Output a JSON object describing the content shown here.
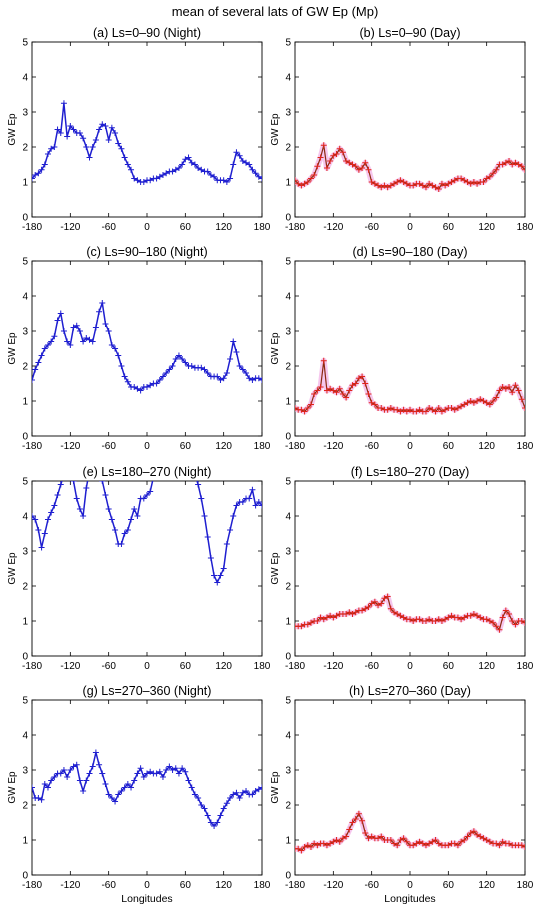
{
  "figure": {
    "title": "mean of several lats of GW Ep (Mp)",
    "ylabel": "GW Ep",
    "xlabel": "Longitudes",
    "night_color": "#1f1fd0",
    "day_color": "#8b2a10",
    "day_shade": "#f4b8e8"
  },
  "chart_data": [
    {
      "type": "line",
      "title": "(a) Ls=0–90 (Night)",
      "ylabel": "GW Ep",
      "xlabel": "",
      "xlim": [
        -180,
        180
      ],
      "ylim": [
        0,
        5
      ],
      "xticks": [
        -180,
        -120,
        -60,
        0,
        60,
        120,
        180
      ],
      "yticks": [
        0,
        1,
        2,
        3,
        4,
        5
      ],
      "x": [
        -180,
        -175,
        -170,
        -165,
        -160,
        -155,
        -150,
        -145,
        -140,
        -135,
        -130,
        -125,
        -120,
        -115,
        -110,
        -105,
        -100,
        -95,
        -90,
        -85,
        -80,
        -75,
        -70,
        -65,
        -60,
        -55,
        -50,
        -45,
        -40,
        -35,
        -30,
        -25,
        -20,
        -15,
        -10,
        -5,
        0,
        5,
        10,
        15,
        20,
        25,
        30,
        35,
        40,
        45,
        50,
        55,
        60,
        65,
        70,
        75,
        80,
        85,
        90,
        95,
        100,
        105,
        110,
        115,
        120,
        125,
        130,
        135,
        140,
        145,
        150,
        155,
        160,
        165,
        170,
        175,
        180
      ],
      "y": [
        1.1,
        1.2,
        1.25,
        1.35,
        1.5,
        1.8,
        1.95,
        2.0,
        2.5,
        2.4,
        3.25,
        2.3,
        2.6,
        2.5,
        2.4,
        2.4,
        2.25,
        2.0,
        1.7,
        2.0,
        2.2,
        2.5,
        2.65,
        2.6,
        2.2,
        2.55,
        2.4,
        2.1,
        1.95,
        1.7,
        1.5,
        1.35,
        1.1,
        1.05,
        1.0,
        1.0,
        1.05,
        1.05,
        1.1,
        1.1,
        1.15,
        1.2,
        1.25,
        1.3,
        1.3,
        1.35,
        1.4,
        1.5,
        1.65,
        1.7,
        1.55,
        1.5,
        1.4,
        1.35,
        1.3,
        1.3,
        1.2,
        1.15,
        1.05,
        1.05,
        1.05,
        1.0,
        1.1,
        1.5,
        1.85,
        1.75,
        1.6,
        1.55,
        1.5,
        1.35,
        1.25,
        1.15,
        1.1
      ]
    },
    {
      "type": "line",
      "title": "(b) Ls=0–90 (Day)",
      "ylabel": "GW Ep",
      "xlabel": "",
      "xlim": [
        -180,
        180
      ],
      "ylim": [
        0,
        5
      ],
      "xticks": [
        -180,
        -120,
        -60,
        0,
        60,
        120,
        180
      ],
      "yticks": [
        0,
        1,
        2,
        3,
        4,
        5
      ],
      "x": [
        -180,
        -175,
        -170,
        -165,
        -160,
        -155,
        -150,
        -145,
        -140,
        -135,
        -130,
        -125,
        -120,
        -115,
        -110,
        -105,
        -100,
        -95,
        -90,
        -85,
        -80,
        -75,
        -70,
        -65,
        -60,
        -55,
        -50,
        -45,
        -40,
        -35,
        -30,
        -25,
        -20,
        -15,
        -10,
        -5,
        0,
        5,
        10,
        15,
        20,
        25,
        30,
        35,
        40,
        45,
        50,
        55,
        60,
        65,
        70,
        75,
        80,
        85,
        90,
        95,
        100,
        105,
        110,
        115,
        120,
        125,
        130,
        135,
        140,
        145,
        150,
        155,
        160,
        165,
        170,
        175,
        180
      ],
      "y": [
        1.05,
        0.95,
        0.9,
        0.95,
        1.0,
        1.1,
        1.2,
        1.45,
        1.7,
        2.05,
        1.4,
        1.6,
        1.75,
        1.8,
        1.95,
        1.85,
        1.6,
        1.55,
        1.5,
        1.45,
        1.35,
        1.4,
        1.55,
        1.35,
        1.0,
        0.95,
        0.9,
        0.85,
        0.9,
        0.85,
        0.9,
        0.95,
        1.0,
        1.05,
        1.0,
        0.95,
        0.9,
        0.9,
        0.95,
        0.95,
        0.9,
        0.85,
        0.95,
        0.9,
        0.85,
        0.8,
        0.95,
        0.9,
        0.95,
        1.0,
        1.05,
        1.1,
        1.1,
        1.05,
        1.0,
        0.95,
        1.0,
        0.95,
        1.0,
        1.0,
        1.1,
        1.15,
        1.25,
        1.35,
        1.5,
        1.5,
        1.55,
        1.6,
        1.5,
        1.55,
        1.5,
        1.45,
        1.35
      ]
    },
    {
      "type": "line",
      "title": "(c) Ls=90–180 (Night)",
      "ylabel": "GW Ep",
      "xlabel": "",
      "xlim": [
        -180,
        180
      ],
      "ylim": [
        0,
        5
      ],
      "xticks": [
        -180,
        -120,
        -60,
        0,
        60,
        120,
        180
      ],
      "yticks": [
        0,
        1,
        2,
        3,
        4,
        5
      ],
      "x": [
        -180,
        -175,
        -170,
        -165,
        -160,
        -155,
        -150,
        -145,
        -140,
        -135,
        -130,
        -125,
        -120,
        -115,
        -110,
        -105,
        -100,
        -95,
        -90,
        -85,
        -80,
        -75,
        -70,
        -65,
        -60,
        -55,
        -50,
        -45,
        -40,
        -35,
        -30,
        -25,
        -20,
        -15,
        -10,
        -5,
        0,
        5,
        10,
        15,
        20,
        25,
        30,
        35,
        40,
        45,
        50,
        55,
        60,
        65,
        70,
        75,
        80,
        85,
        90,
        95,
        100,
        105,
        110,
        115,
        120,
        125,
        130,
        135,
        140,
        145,
        150,
        155,
        160,
        165,
        170,
        175,
        180
      ],
      "y": [
        1.6,
        1.9,
        2.1,
        2.3,
        2.5,
        2.6,
        2.7,
        2.85,
        3.3,
        3.5,
        3.0,
        2.7,
        2.6,
        3.1,
        3.15,
        3.0,
        2.7,
        2.8,
        2.75,
        2.7,
        3.1,
        3.55,
        3.8,
        3.2,
        3.0,
        2.6,
        2.5,
        2.3,
        2.0,
        1.7,
        1.55,
        1.4,
        1.4,
        1.35,
        1.3,
        1.4,
        1.4,
        1.45,
        1.5,
        1.5,
        1.6,
        1.7,
        1.8,
        1.9,
        2.0,
        2.2,
        2.3,
        2.2,
        2.1,
        2.0,
        2.0,
        1.95,
        1.95,
        1.95,
        1.9,
        1.8,
        1.7,
        1.7,
        1.7,
        1.6,
        1.65,
        1.8,
        2.2,
        2.7,
        2.4,
        2.0,
        1.9,
        1.8,
        1.65,
        1.6,
        1.65,
        1.65,
        1.6
      ]
    },
    {
      "type": "line",
      "title": "(d) Ls=90–180 (Day)",
      "ylabel": "GW Ep",
      "xlabel": "",
      "xlim": [
        -180,
        180
      ],
      "ylim": [
        0,
        5
      ],
      "xticks": [
        -180,
        -120,
        -60,
        0,
        60,
        120,
        180
      ],
      "yticks": [
        0,
        1,
        2,
        3,
        4,
        5
      ],
      "x": [
        -180,
        -175,
        -170,
        -165,
        -160,
        -155,
        -150,
        -145,
        -140,
        -135,
        -130,
        -125,
        -120,
        -115,
        -110,
        -105,
        -100,
        -95,
        -90,
        -85,
        -80,
        -75,
        -70,
        -65,
        -60,
        -55,
        -50,
        -45,
        -40,
        -35,
        -30,
        -25,
        -20,
        -15,
        -10,
        -5,
        0,
        5,
        10,
        15,
        20,
        25,
        30,
        35,
        40,
        45,
        50,
        55,
        60,
        65,
        70,
        75,
        80,
        85,
        90,
        95,
        100,
        105,
        110,
        115,
        120,
        125,
        130,
        135,
        140,
        145,
        150,
        155,
        160,
        165,
        170,
        175,
        180
      ],
      "y": [
        0.8,
        0.75,
        0.75,
        0.7,
        0.8,
        0.9,
        1.2,
        1.3,
        1.4,
        2.15,
        1.3,
        1.35,
        1.3,
        1.25,
        1.35,
        1.2,
        1.1,
        1.3,
        1.45,
        1.5,
        1.65,
        1.7,
        1.5,
        1.2,
        0.95,
        0.9,
        0.8,
        0.8,
        0.75,
        0.75,
        0.8,
        0.75,
        0.75,
        0.7,
        0.75,
        0.7,
        0.75,
        0.7,
        0.7,
        0.75,
        0.7,
        0.7,
        0.8,
        0.75,
        0.7,
        0.8,
        0.7,
        0.75,
        0.8,
        0.8,
        0.75,
        0.8,
        0.85,
        0.9,
        0.95,
        1.0,
        0.95,
        1.0,
        1.05,
        1.0,
        0.95,
        0.9,
        1.0,
        1.1,
        1.3,
        1.4,
        1.35,
        1.4,
        1.25,
        1.45,
        1.3,
        1.05,
        0.8
      ]
    },
    {
      "type": "line",
      "title": "(e) Ls=180–270 (Night)",
      "ylabel": "GW Ep",
      "xlabel": "",
      "xlim": [
        -180,
        180
      ],
      "ylim": [
        0,
        5
      ],
      "xticks": [
        -180,
        -120,
        -60,
        0,
        60,
        120,
        180
      ],
      "yticks": [
        0,
        1,
        2,
        3,
        4,
        5
      ],
      "x": [
        -180,
        -175,
        -170,
        -165,
        -160,
        -155,
        -150,
        -145,
        -140,
        -135,
        -130,
        -125,
        -120,
        -115,
        -110,
        -105,
        -100,
        -95,
        -90,
        -85,
        -80,
        -75,
        -70,
        -65,
        -60,
        -55,
        -50,
        -45,
        -40,
        -35,
        -30,
        -25,
        -20,
        -15,
        -10,
        -5,
        0,
        5,
        10,
        15,
        20,
        25,
        30,
        35,
        40,
        45,
        50,
        55,
        60,
        65,
        70,
        75,
        80,
        85,
        90,
        95,
        100,
        105,
        110,
        115,
        120,
        125,
        130,
        135,
        140,
        145,
        150,
        155,
        160,
        165,
        170,
        175,
        180
      ],
      "y": [
        4.0,
        3.9,
        3.6,
        3.1,
        3.5,
        3.9,
        4.1,
        4.3,
        4.6,
        4.9,
        5.2,
        5.3,
        5.2,
        5.0,
        4.5,
        4.2,
        4.0,
        4.8,
        5.3,
        5.3,
        5.3,
        5.2,
        5.0,
        4.6,
        4.2,
        3.9,
        3.6,
        3.2,
        3.2,
        3.5,
        3.6,
        3.9,
        4.2,
        4.0,
        4.5,
        4.5,
        4.6,
        4.7,
        5.1,
        5.3,
        5.3,
        5.3,
        5.3,
        5.3,
        5.3,
        5.3,
        5.3,
        5.3,
        5.3,
        5.3,
        5.3,
        5.2,
        4.9,
        4.5,
        4.0,
        3.4,
        2.8,
        2.3,
        2.1,
        2.3,
        2.5,
        3.2,
        3.6,
        4.0,
        4.3,
        4.4,
        4.4,
        4.5,
        4.5,
        4.75,
        4.3,
        4.4,
        4.3
      ]
    },
    {
      "type": "line",
      "title": "(f) Ls=180–270 (Day)",
      "ylabel": "GW Ep",
      "xlabel": "",
      "xlim": [
        -180,
        180
      ],
      "ylim": [
        0,
        5
      ],
      "xticks": [
        -180,
        -120,
        -60,
        0,
        60,
        120,
        180
      ],
      "yticks": [
        0,
        1,
        2,
        3,
        4,
        5
      ],
      "x": [
        -180,
        -175,
        -170,
        -165,
        -160,
        -155,
        -150,
        -145,
        -140,
        -135,
        -130,
        -125,
        -120,
        -115,
        -110,
        -105,
        -100,
        -95,
        -90,
        -85,
        -80,
        -75,
        -70,
        -65,
        -60,
        -55,
        -50,
        -45,
        -40,
        -35,
        -30,
        -25,
        -20,
        -15,
        -10,
        -5,
        0,
        5,
        10,
        15,
        20,
        25,
        30,
        35,
        40,
        45,
        50,
        55,
        60,
        65,
        70,
        75,
        80,
        85,
        90,
        95,
        100,
        105,
        110,
        115,
        120,
        125,
        130,
        135,
        140,
        145,
        150,
        155,
        160,
        165,
        170,
        175,
        180
      ],
      "y": [
        0.85,
        0.85,
        0.85,
        0.9,
        0.9,
        0.95,
        1.0,
        1.0,
        1.1,
        1.05,
        1.1,
        1.15,
        1.1,
        1.15,
        1.2,
        1.2,
        1.2,
        1.25,
        1.2,
        1.25,
        1.3,
        1.3,
        1.35,
        1.4,
        1.5,
        1.55,
        1.45,
        1.5,
        1.65,
        1.7,
        1.35,
        1.25,
        1.2,
        1.15,
        1.1,
        1.05,
        1.05,
        1.0,
        1.05,
        1.05,
        1.0,
        1.0,
        1.05,
        1.0,
        1.0,
        1.05,
        1.0,
        1.05,
        1.1,
        1.15,
        1.1,
        1.1,
        1.05,
        1.1,
        1.15,
        1.15,
        1.2,
        1.15,
        1.1,
        1.05,
        1.05,
        1.0,
        0.95,
        0.85,
        0.75,
        1.1,
        1.3,
        1.2,
        1.0,
        0.9,
        1.0,
        1.0,
        0.95
      ]
    },
    {
      "type": "line",
      "title": "(g) Ls=270–360 (Night)",
      "ylabel": "GW Ep",
      "xlabel": "Longitudes",
      "xlim": [
        -180,
        180
      ],
      "ylim": [
        0,
        5
      ],
      "xticks": [
        -180,
        -120,
        -60,
        0,
        60,
        120,
        180
      ],
      "yticks": [
        0,
        1,
        2,
        3,
        4,
        5
      ],
      "x": [
        -180,
        -175,
        -170,
        -165,
        -160,
        -155,
        -150,
        -145,
        -140,
        -135,
        -130,
        -125,
        -120,
        -115,
        -110,
        -105,
        -100,
        -95,
        -90,
        -85,
        -80,
        -75,
        -70,
        -65,
        -60,
        -55,
        -50,
        -45,
        -40,
        -35,
        -30,
        -25,
        -20,
        -15,
        -10,
        -5,
        0,
        5,
        10,
        15,
        20,
        25,
        30,
        35,
        40,
        45,
        50,
        55,
        60,
        65,
        70,
        75,
        80,
        85,
        90,
        95,
        100,
        105,
        110,
        115,
        120,
        125,
        130,
        135,
        140,
        145,
        150,
        155,
        160,
        165,
        170,
        175,
        180
      ],
      "y": [
        2.5,
        2.2,
        2.2,
        2.15,
        2.6,
        2.5,
        2.7,
        2.8,
        2.9,
        2.9,
        3.0,
        2.8,
        3.0,
        3.1,
        3.15,
        2.7,
        2.4,
        2.7,
        2.9,
        3.1,
        3.5,
        3.15,
        2.9,
        2.6,
        2.3,
        2.2,
        2.1,
        2.3,
        2.4,
        2.5,
        2.6,
        2.5,
        2.7,
        2.9,
        3.05,
        2.8,
        2.9,
        2.95,
        2.9,
        2.9,
        2.95,
        2.8,
        3.0,
        3.1,
        3.0,
        3.05,
        2.9,
        3.05,
        2.95,
        2.7,
        2.5,
        2.3,
        2.2,
        2.0,
        1.9,
        1.7,
        1.5,
        1.4,
        1.5,
        1.7,
        1.9,
        2.05,
        2.2,
        2.3,
        2.35,
        2.2,
        2.35,
        2.4,
        2.3,
        2.3,
        2.4,
        2.45,
        2.5
      ]
    },
    {
      "type": "line",
      "title": "(h) Ls=270–360 (Day)",
      "ylabel": "GW Ep",
      "xlabel": "Longitudes",
      "xlim": [
        -180,
        180
      ],
      "ylim": [
        0,
        5
      ],
      "xticks": [
        -180,
        -120,
        -60,
        0,
        60,
        120,
        180
      ],
      "yticks": [
        0,
        1,
        2,
        3,
        4,
        5
      ],
      "x": [
        -180,
        -175,
        -170,
        -165,
        -160,
        -155,
        -150,
        -145,
        -140,
        -135,
        -130,
        -125,
        -120,
        -115,
        -110,
        -105,
        -100,
        -95,
        -90,
        -85,
        -80,
        -75,
        -70,
        -65,
        -60,
        -55,
        -50,
        -45,
        -40,
        -35,
        -30,
        -25,
        -20,
        -15,
        -10,
        -5,
        0,
        5,
        10,
        15,
        20,
        25,
        30,
        35,
        40,
        45,
        50,
        55,
        60,
        65,
        70,
        75,
        80,
        85,
        90,
        95,
        100,
        105,
        110,
        115,
        120,
        125,
        130,
        135,
        140,
        145,
        150,
        155,
        160,
        165,
        170,
        175,
        180
      ],
      "y": [
        0.75,
        0.75,
        0.7,
        0.8,
        0.85,
        0.8,
        0.9,
        0.85,
        0.9,
        0.9,
        0.85,
        0.9,
        0.95,
        1.0,
        0.95,
        1.05,
        1.1,
        1.3,
        1.5,
        1.6,
        1.75,
        1.55,
        1.2,
        1.05,
        1.1,
        1.05,
        1.05,
        1.1,
        1.0,
        1.0,
        1.0,
        0.9,
        0.85,
        1.0,
        1.05,
        0.95,
        0.85,
        0.85,
        0.9,
        0.95,
        0.9,
        0.85,
        0.9,
        0.95,
        1.0,
        0.9,
        0.85,
        0.85,
        0.85,
        0.9,
        0.9,
        0.85,
        0.95,
        1.0,
        1.1,
        1.2,
        1.25,
        1.15,
        1.1,
        1.05,
        1.0,
        0.95,
        0.9,
        0.9,
        0.85,
        0.95,
        0.9,
        0.9,
        0.85,
        0.85,
        0.85,
        0.85,
        0.8
      ]
    }
  ]
}
